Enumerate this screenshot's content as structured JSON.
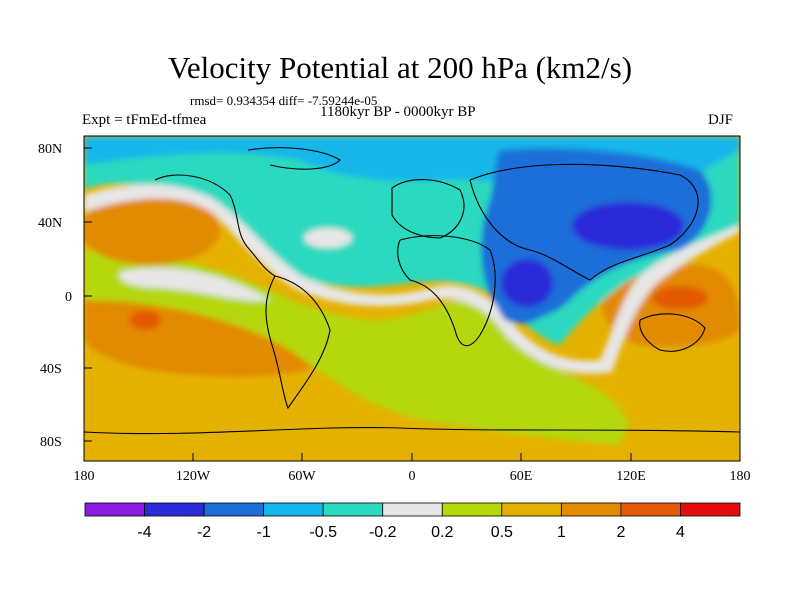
{
  "title": "Velocity Potential at 200 hPa (km2/s)",
  "stats_line": "rmsd= 0.934354  diff= -7.59244e-05",
  "left_label": "Expt = tFmEd-tfmea",
  "center_label": "1180kyr BP - 0000kyr BP",
  "right_label": "DJF",
  "y_ticks": [
    "80N",
    "40N",
    "0",
    "40S",
    "80S"
  ],
  "x_ticks": [
    "180",
    "120W",
    "60W",
    "0",
    "60E",
    "120E",
    "180"
  ],
  "colorbar": {
    "colors": [
      "#8a1de0",
      "#2a2ad8",
      "#1e6ed8",
      "#12b6ea",
      "#2ad9bf",
      "#e6e6e6",
      "#b4d80a",
      "#e5b100",
      "#e28a00",
      "#e45a06",
      "#e40d0d"
    ],
    "labels": [
      "-4",
      "-2",
      "-1",
      "-0.5",
      "-0.2",
      "0.2",
      "0.5",
      "1",
      "2",
      "4"
    ]
  }
}
